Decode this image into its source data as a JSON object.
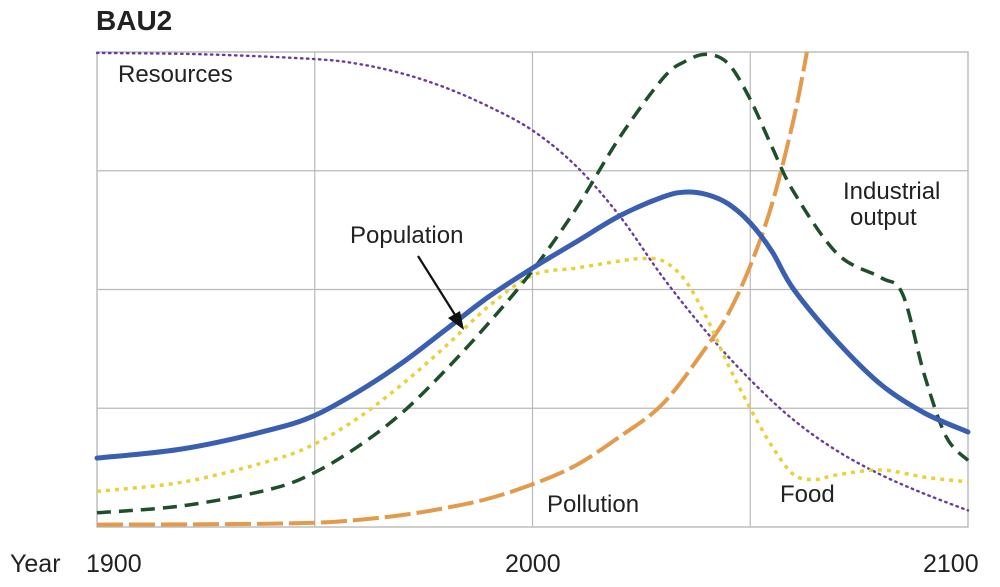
{
  "chart_data": {
    "type": "line",
    "title": "BAU2",
    "x_prefix": "Year",
    "x_ticks": [
      "1900",
      "2000",
      "2100"
    ],
    "xlim": [
      1900,
      2100
    ],
    "ylim": [
      0,
      1
    ],
    "grid": true,
    "colors": {
      "resources": "#6a3d9a",
      "population": "#3a5fb0",
      "industrial": "#1f4e2c",
      "food": "#e8d23a",
      "pollution": "#e39a4a",
      "grid": "#b9b9b9",
      "arrow": "#111111"
    },
    "series": [
      {
        "key": "resources",
        "style": "dotted",
        "x": [
          1900,
          1925,
          1950,
          1960,
          1970,
          1980,
          1990,
          2000,
          2010,
          2020,
          2030,
          2040,
          2050,
          2060,
          2070,
          2080,
          2090,
          2100
        ],
        "y": [
          0.998,
          0.995,
          0.985,
          0.975,
          0.955,
          0.925,
          0.885,
          0.835,
          0.76,
          0.655,
          0.525,
          0.41,
          0.31,
          0.225,
          0.16,
          0.11,
          0.07,
          0.035
        ]
      },
      {
        "key": "population",
        "style": "solid",
        "x": [
          1900,
          1920,
          1940,
          1950,
          1960,
          1970,
          1980,
          1990,
          2000,
          2010,
          2020,
          2030,
          2035,
          2040,
          2045,
          2050,
          2055,
          2060,
          2070,
          2080,
          2090,
          2100
        ],
        "y": [
          0.145,
          0.165,
          0.205,
          0.235,
          0.285,
          0.345,
          0.415,
          0.485,
          0.545,
          0.6,
          0.655,
          0.695,
          0.705,
          0.7,
          0.68,
          0.64,
          0.58,
          0.5,
          0.39,
          0.3,
          0.24,
          0.2
        ]
      },
      {
        "key": "industrial",
        "style": "dashed",
        "x": [
          1900,
          1920,
          1940,
          1950,
          1960,
          1970,
          1980,
          1990,
          2000,
          2010,
          2020,
          2030,
          2035,
          2040,
          2045,
          2050,
          2055,
          2060,
          2070,
          2080,
          2085,
          2090,
          2095,
          2100
        ],
        "y": [
          0.03,
          0.045,
          0.08,
          0.115,
          0.17,
          0.24,
          0.33,
          0.43,
          0.54,
          0.67,
          0.82,
          0.945,
          0.98,
          0.995,
          0.975,
          0.9,
          0.8,
          0.705,
          0.575,
          0.525,
          0.49,
          0.32,
          0.19,
          0.14
        ]
      },
      {
        "key": "food",
        "style": "dotted",
        "x": [
          1900,
          1920,
          1940,
          1950,
          1960,
          1970,
          1980,
          1990,
          2000,
          2010,
          2020,
          2025,
          2030,
          2035,
          2040,
          2045,
          2050,
          2055,
          2060,
          2065,
          2070,
          2080,
          2090,
          2100
        ],
        "y": [
          0.075,
          0.095,
          0.14,
          0.175,
          0.23,
          0.3,
          0.38,
          0.465,
          0.53,
          0.545,
          0.56,
          0.565,
          0.56,
          0.52,
          0.44,
          0.34,
          0.25,
          0.17,
          0.11,
          0.1,
          0.11,
          0.12,
          0.105,
          0.095
        ]
      },
      {
        "key": "pollution",
        "style": "dashed",
        "x": [
          1900,
          1930,
          1950,
          1960,
          1970,
          1980,
          1990,
          2000,
          2010,
          2020,
          2030,
          2040,
          2045,
          2050,
          2055,
          2060,
          2063
        ],
        "y": [
          0.005,
          0.006,
          0.009,
          0.015,
          0.025,
          0.04,
          0.06,
          0.09,
          0.13,
          0.19,
          0.26,
          0.38,
          0.45,
          0.55,
          0.68,
          0.86,
          1.0
        ]
      }
    ],
    "annotations": {
      "resources": "Resources",
      "population": "Population",
      "industrial_line1": "Industrial",
      "industrial_line2": "output",
      "pollution": "Pollution",
      "food": "Food"
    }
  }
}
